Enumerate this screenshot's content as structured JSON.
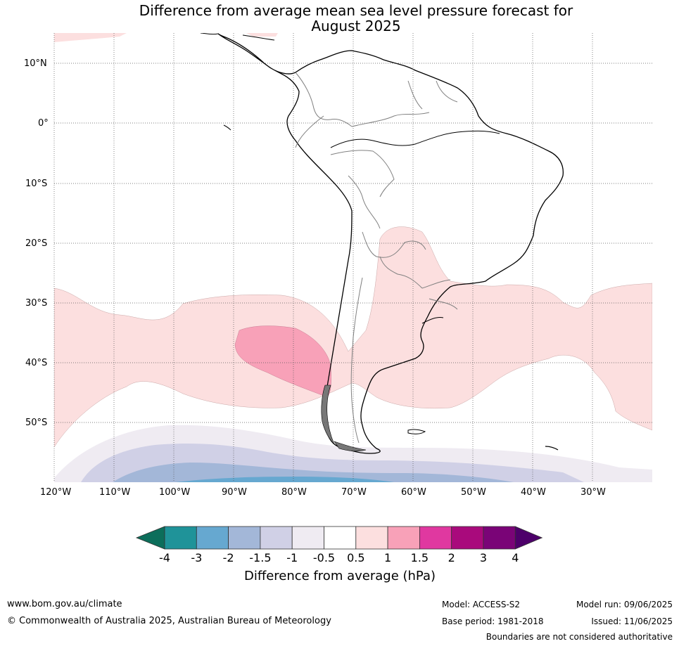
{
  "title_line1": "Difference from average mean sea level pressure forecast for",
  "title_line2": "August 2025",
  "lat_labels": [
    "10°N",
    "0°",
    "10°S",
    "20°S",
    "30°S",
    "40°S",
    "50°S"
  ],
  "lon_labels": [
    "120°W",
    "110°W",
    "100°W",
    "90°W",
    "80°W",
    "70°W",
    "60°W",
    "50°W",
    "40°W",
    "30°W"
  ],
  "colorbar": {
    "ticks": [
      "-4",
      "-3",
      "-2",
      "-1.5",
      "-1",
      "-0.5",
      "0.5",
      "1",
      "1.5",
      "2",
      "3",
      "4"
    ],
    "colors": [
      "#0c6e5b",
      "#1f9399",
      "#66a8d0",
      "#a3b7d8",
      "#d0d0e6",
      "#efebf2",
      "#ffffff",
      "#fcdfdf",
      "#f8a1b8",
      "#e038a0",
      "#a90a7c",
      "#7a0477",
      "#4d006a"
    ],
    "label": "Difference from average (hPa)"
  },
  "footer": {
    "website": "www.bom.gov.au/climate",
    "copyright": "© Commonwealth of Australia 2025, Australian Bureau of Meteorology",
    "model": "Model: ACCESS-S2",
    "base_period": "Base period: 1981-2018",
    "model_run": "Model run: 09/06/2025",
    "issued": "Issued: 11/06/2025",
    "disclaimer": "Boundaries are not considered authoritative"
  }
}
